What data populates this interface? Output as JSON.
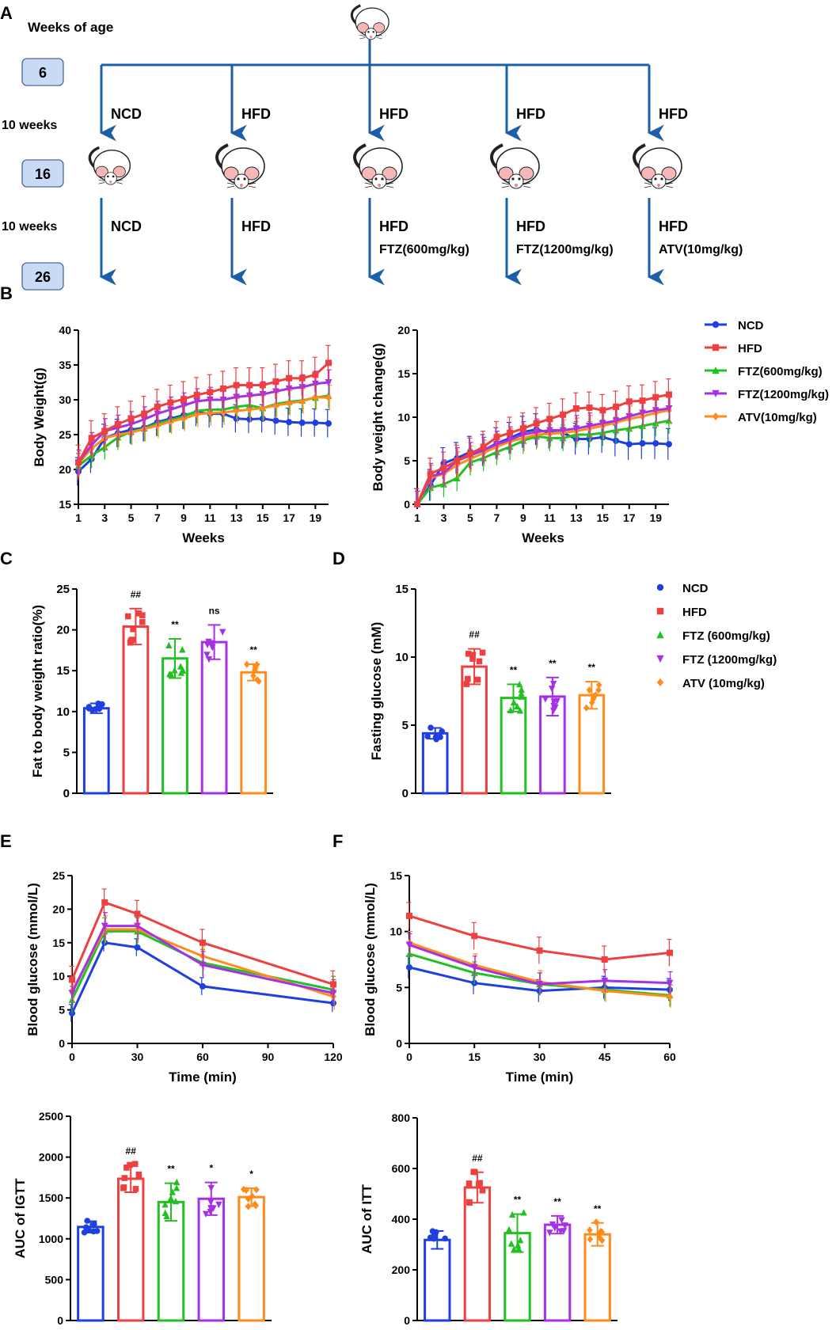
{
  "colors": {
    "NCD": "#1f3fe0",
    "HFD": "#ee4040",
    "FTZ600": "#22c022",
    "FTZ1200": "#a630e6",
    "ATV": "#ff8c1a",
    "arrow": "#1a5fa8",
    "box_fill": "#c9daf5"
  },
  "panel_letters": [
    "A",
    "B",
    "C",
    "D",
    "E",
    "F"
  ],
  "design": {
    "weeks_label": "Weeks of age",
    "age_boxes": [
      "6",
      "16",
      "26"
    ],
    "period_labels": [
      "10 weeks",
      "10 weeks"
    ],
    "top_diets": [
      "NCD",
      "HFD",
      "HFD",
      "HFD",
      "HFD"
    ],
    "bottom_diets": [
      "NCD",
      "HFD",
      "HFD",
      "HFD",
      "HFD"
    ],
    "bottom_treatments": [
      "",
      "",
      "FTZ(600mg/kg)",
      "FTZ(1200mg/kg)",
      "ATV(10mg/kg)"
    ]
  },
  "legends": {
    "B": [
      "NCD",
      "HFD",
      "FTZ(600mg/kg)",
      "FTZ(1200mg/kg)",
      "ATV(10mg/kg)"
    ],
    "D": [
      "NCD",
      "HFD",
      "FTZ (600mg/kg)",
      "FTZ (1200mg/kg)",
      "ATV (10mg/kg)"
    ]
  },
  "chart_data": [
    {
      "id": "B1",
      "type": "line",
      "ylabel": "Body Weight(g)",
      "xlabel": "Weeks",
      "ylim": [
        15,
        40
      ],
      "yticks": [
        "15",
        "20",
        "25",
        "30",
        "35",
        "40"
      ],
      "xlim": [
        1,
        20
      ],
      "xticks": [
        "1",
        "3",
        "5",
        "7",
        "9",
        "11",
        "13",
        "15",
        "17",
        "19"
      ],
      "x": [
        1,
        2,
        3,
        4,
        5,
        6,
        7,
        8,
        9,
        10,
        11,
        12,
        13,
        14,
        15,
        16,
        17,
        18,
        19,
        20
      ],
      "series": [
        {
          "name": "NCD",
          "values": [
            19.7,
            21.5,
            24.5,
            25.2,
            25.7,
            26.0,
            26.8,
            27.3,
            27.8,
            28.2,
            28.0,
            28.0,
            27.3,
            27.2,
            27.3,
            27.0,
            26.8,
            26.7,
            26.7,
            26.6
          ],
          "err": 2
        },
        {
          "name": "HFD",
          "values": [
            21.0,
            24.5,
            25.5,
            26.5,
            27.3,
            28.0,
            29.0,
            29.6,
            30.1,
            30.7,
            31.1,
            31.6,
            32.1,
            32.1,
            32.1,
            32.6,
            33.1,
            33.1,
            33.6,
            35.3
          ],
          "err": 2.5
        },
        {
          "name": "FTZ(600mg/kg)",
          "values": [
            20.5,
            22.0,
            23.2,
            24.6,
            25.4,
            25.9,
            26.6,
            27.1,
            27.6,
            28.4,
            28.6,
            28.6,
            29.0,
            29.2,
            28.8,
            29.4,
            29.7,
            29.9,
            30.3,
            30.6
          ],
          "err": 1.8
        },
        {
          "name": "FTZ(1200mg/kg)",
          "values": [
            21.0,
            23.5,
            25.5,
            26.0,
            26.5,
            27.2,
            28.0,
            28.6,
            29.2,
            29.8,
            30.0,
            30.0,
            30.4,
            30.6,
            30.8,
            31.2,
            31.6,
            31.8,
            32.3,
            32.5
          ],
          "err": 1.8
        },
        {
          "name": "ATV(10mg/kg)",
          "values": [
            20.8,
            23.0,
            24.5,
            25.0,
            25.3,
            25.8,
            26.3,
            26.9,
            27.3,
            27.9,
            28.1,
            28.2,
            28.4,
            28.6,
            28.8,
            29.2,
            29.5,
            29.8,
            30.4,
            30.3
          ],
          "err": 1.8
        }
      ]
    },
    {
      "id": "B2",
      "type": "line",
      "ylabel": "Body weight change(g)",
      "xlabel": "Weeks",
      "ylim": [
        0,
        20
      ],
      "yticks": [
        "0",
        "5",
        "10",
        "15",
        "20"
      ],
      "xlim": [
        1,
        20
      ],
      "xticks": [
        "1",
        "3",
        "5",
        "7",
        "9",
        "11",
        "13",
        "15",
        "17",
        "19"
      ],
      "x": [
        1,
        2,
        3,
        4,
        5,
        6,
        7,
        8,
        9,
        10,
        11,
        12,
        13,
        14,
        15,
        16,
        17,
        18,
        19,
        20
      ],
      "series": [
        {
          "name": "NCD",
          "values": [
            0,
            2.2,
            4.7,
            5.3,
            6.0,
            6.2,
            7.0,
            7.6,
            8.3,
            8.6,
            8.2,
            8.2,
            7.5,
            7.5,
            7.7,
            7.3,
            6.9,
            7.0,
            7.0,
            6.9
          ],
          "err": 1.8
        },
        {
          "name": "HFD",
          "values": [
            0,
            3.5,
            4.2,
            5.0,
            5.8,
            6.6,
            7.7,
            8.2,
            8.7,
            9.3,
            9.8,
            10.3,
            11.0,
            11.1,
            10.8,
            11.2,
            11.8,
            11.9,
            12.3,
            12.6
          ],
          "err": 1.8
        },
        {
          "name": "FTZ(600mg/kg)",
          "values": [
            0,
            1.9,
            2.3,
            3.0,
            4.8,
            5.3,
            6.0,
            6.6,
            7.3,
            7.8,
            7.6,
            7.6,
            8.0,
            8.0,
            8.2,
            8.5,
            8.7,
            9.0,
            9.3,
            9.6
          ],
          "err": 1.5
        },
        {
          "name": "FTZ(1200mg/kg)",
          "values": [
            0,
            3.2,
            3.6,
            5.0,
            5.6,
            6.2,
            6.9,
            7.4,
            8.0,
            8.3,
            8.5,
            8.5,
            8.7,
            9.0,
            9.3,
            9.6,
            10.1,
            10.5,
            10.8,
            11.0
          ],
          "err": 1.5
        },
        {
          "name": "ATV(10mg/kg)",
          "values": [
            0,
            3.0,
            3.5,
            4.5,
            5.2,
            5.9,
            6.6,
            7.2,
            7.6,
            8.0,
            8.1,
            8.2,
            8.4,
            8.7,
            9.0,
            9.4,
            9.8,
            10.1,
            10.5,
            10.8
          ],
          "err": 1.5
        }
      ]
    },
    {
      "id": "C",
      "type": "bar",
      "ylabel": "Fat to body weight ratio(%)",
      "ylim": [
        0,
        25
      ],
      "yticks": [
        "0",
        "5",
        "10",
        "15",
        "20",
        "25"
      ],
      "categories": [
        "NCD",
        "HFD",
        "FTZ(600mg/kg)",
        "FTZ(1200mg/kg)",
        "ATV(10mg/kg)"
      ],
      "values": [
        10.4,
        20.4,
        16.5,
        18.5,
        14.8
      ],
      "errors": [
        0.6,
        2.2,
        2.4,
        2.1,
        1.0
      ],
      "annotations": [
        "",
        "##",
        "**",
        "ns",
        "**"
      ]
    },
    {
      "id": "D",
      "type": "bar",
      "ylabel": "Fasting glucose (mM)",
      "ylim": [
        0,
        15
      ],
      "yticks": [
        "0",
        "5",
        "10",
        "15"
      ],
      "categories": [
        "NCD",
        "HFD",
        "FTZ (600mg/kg)",
        "FTZ (1200mg/kg)",
        "ATV (10mg/kg)"
      ],
      "values": [
        4.4,
        9.3,
        7.0,
        7.1,
        7.2
      ],
      "errors": [
        0.4,
        1.3,
        1.0,
        1.4,
        1.0
      ],
      "annotations": [
        "",
        "##",
        "**",
        "**",
        "**"
      ]
    },
    {
      "id": "E",
      "type": "line",
      "ylabel": "Blood glucose (mmol/L)",
      "xlabel": "Time (min)",
      "ylim": [
        0,
        25
      ],
      "yticks": [
        "0",
        "5",
        "10",
        "15",
        "20",
        "25"
      ],
      "xlim": [
        0,
        120
      ],
      "xticks": [
        "0",
        "30",
        "60",
        "90",
        "120"
      ],
      "x": [
        0,
        15,
        30,
        60,
        120
      ],
      "series": [
        {
          "name": "NCD",
          "values": [
            4.5,
            15.0,
            14.3,
            8.5,
            6.0
          ],
          "err": 1.3
        },
        {
          "name": "HFD",
          "values": [
            9.5,
            21.0,
            19.3,
            15.0,
            8.8
          ],
          "err": 2.0
        },
        {
          "name": "FTZ(600mg/kg)",
          "values": [
            6.5,
            16.7,
            16.7,
            12.0,
            8.0
          ],
          "err": 2.0
        },
        {
          "name": "FTZ(1200mg/kg)",
          "values": [
            7.5,
            17.5,
            17.5,
            11.7,
            7.5
          ],
          "err": 2.0
        },
        {
          "name": "ATV(10mg/kg)",
          "values": [
            7.8,
            17.0,
            17.0,
            13.0,
            7.0
          ],
          "err": 2.0
        }
      ]
    },
    {
      "id": "F",
      "type": "line",
      "ylabel": "Blood glucose (mmol/L)",
      "xlabel": "Time (min)",
      "ylim": [
        0,
        15
      ],
      "yticks": [
        "0",
        "5",
        "10",
        "15"
      ],
      "xlim": [
        0,
        60
      ],
      "xticks": [
        "0",
        "15",
        "30",
        "45",
        "60"
      ],
      "x": [
        0,
        15,
        30,
        45,
        60
      ],
      "series": [
        {
          "name": "NCD",
          "values": [
            6.8,
            5.4,
            4.7,
            5.0,
            4.8
          ],
          "err": 1.0
        },
        {
          "name": "HFD",
          "values": [
            11.4,
            9.6,
            8.3,
            7.5,
            8.1
          ],
          "err": 1.2
        },
        {
          "name": "FTZ(600mg/kg)",
          "values": [
            8.0,
            6.3,
            5.3,
            4.8,
            4.3
          ],
          "err": 1.0
        },
        {
          "name": "FTZ(1200mg/kg)",
          "values": [
            8.8,
            6.8,
            5.3,
            5.6,
            5.4
          ],
          "err": 1.0
        },
        {
          "name": "ATV(10mg/kg)",
          "values": [
            9.0,
            7.0,
            5.5,
            4.7,
            4.2
          ],
          "err": 1.0
        }
      ]
    },
    {
      "id": "E2",
      "type": "bar",
      "ylabel": "AUC of IGTT",
      "ylim": [
        0,
        2500
      ],
      "yticks": [
        "0",
        "500",
        "1000",
        "1500",
        "2000",
        "2500"
      ],
      "categories": [
        "NCD",
        "HFD",
        "FTZ(600mg/kg)",
        "FTZ(1200mg/kg)",
        "ATV(10mg/kg)"
      ],
      "values": [
        1145,
        1735,
        1450,
        1490,
        1510
      ],
      "errors": [
        70,
        165,
        230,
        200,
        110
      ],
      "annotations": [
        "",
        "##",
        "**",
        "*",
        "*"
      ]
    },
    {
      "id": "F2",
      "type": "bar",
      "ylabel": "AUC of ITT",
      "ylim": [
        0,
        800
      ],
      "yticks": [
        "0",
        "200",
        "400",
        "600",
        "800"
      ],
      "categories": [
        "NCD",
        "HFD",
        "FTZ(600mg/kg)",
        "FTZ(1200mg/kg)",
        "ATV(10mg/kg)"
      ],
      "values": [
        318,
        525,
        345,
        378,
        340
      ],
      "errors": [
        35,
        60,
        75,
        35,
        45
      ],
      "annotations": [
        "",
        "##",
        "**",
        "**",
        "**"
      ]
    }
  ]
}
